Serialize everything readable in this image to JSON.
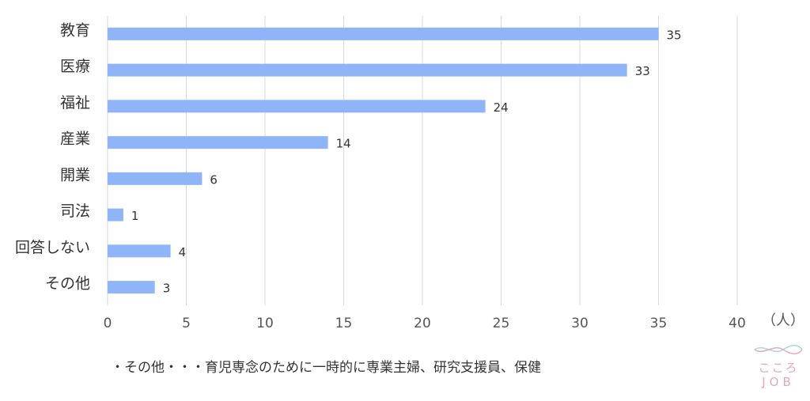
{
  "chart_data": {
    "type": "bar",
    "orientation": "horizontal",
    "categories": [
      "教育",
      "医療",
      "福祉",
      "産業",
      "開業",
      "司法",
      "回答しない",
      "その他"
    ],
    "values": [
      35,
      33,
      24,
      14,
      6,
      1,
      4,
      3
    ],
    "xlim": [
      0,
      40
    ],
    "xticks": [
      "0",
      "5",
      "10",
      "15",
      "20",
      "25",
      "30",
      "35",
      "40"
    ],
    "unit": "（人）",
    "grid": true,
    "bar_color": "#8fb4f8",
    "grid_color": "#d9d9d9"
  },
  "footnote": "・その他・・・育児専念のために一時的に専業主婦、研究支援員、保健",
  "logo": {
    "line1": "こころ",
    "line2": "JOB",
    "color": "#e8a8b8",
    "wave_color": "#a8d4e8"
  }
}
